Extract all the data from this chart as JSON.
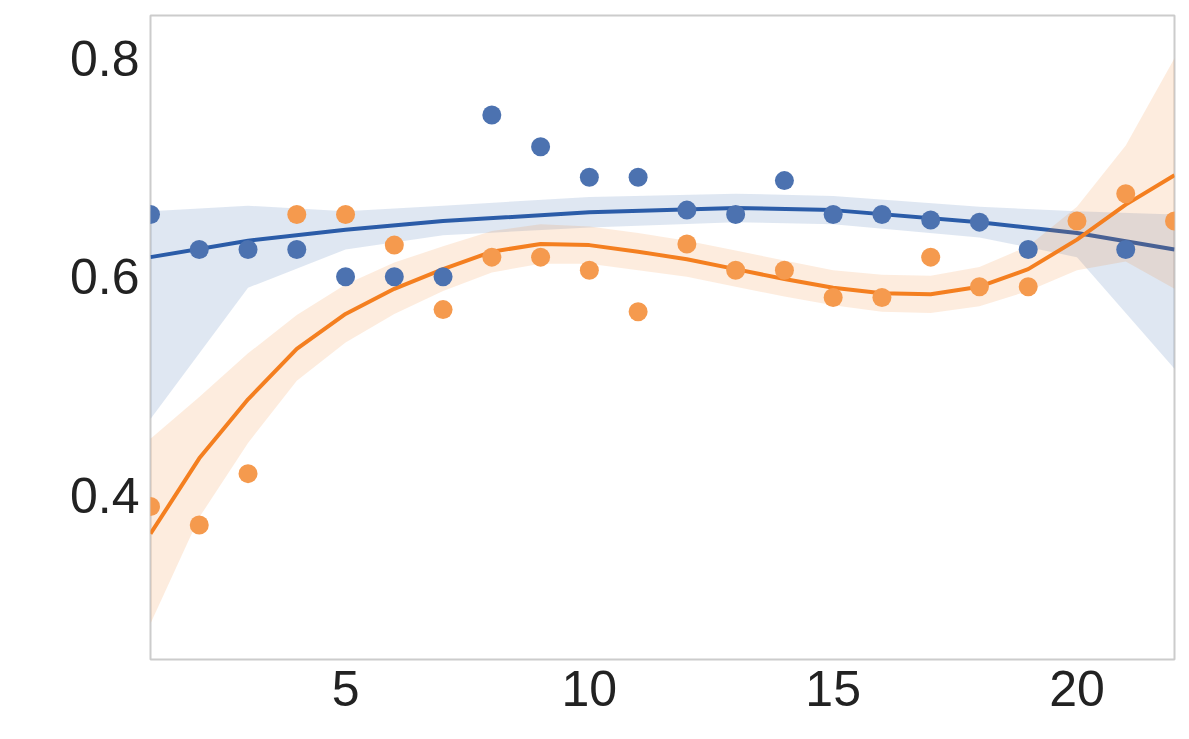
{
  "chart_data": {
    "type": "scatter",
    "x": [
      1,
      2,
      3,
      4,
      5,
      6,
      7,
      8,
      9,
      10,
      11,
      12,
      13,
      14,
      15,
      16,
      17,
      18,
      19,
      20,
      21,
      22
    ],
    "series": [
      {
        "marker": "circle",
        "color": "#4c72b0",
        "values": [
          0.657,
          0.625,
          0.625,
          0.625,
          0.6,
          0.6,
          0.6,
          0.748,
          0.719,
          0.691,
          0.691,
          0.661,
          0.657,
          0.688,
          0.657,
          0.657,
          0.652,
          0.65,
          0.625,
          null,
          0.625,
          null
        ]
      },
      {
        "marker": "circle",
        "color": "#f59a4e",
        "values": [
          0.39,
          0.373,
          0.42,
          0.657,
          0.657,
          0.629,
          0.57,
          0.618,
          0.618,
          0.606,
          0.568,
          0.63,
          0.606,
          0.606,
          0.581,
          0.581,
          0.618,
          0.591,
          0.591,
          0.651,
          0.676,
          0.651
        ]
      },
      {
        "type": "line",
        "marker": "none",
        "color": "#2b5ca8",
        "x": [
          1,
          3,
          5,
          7,
          10,
          13,
          15,
          18,
          20,
          22
        ],
        "values": [
          0.618,
          0.633,
          0.643,
          0.651,
          0.659,
          0.663,
          0.661,
          0.65,
          0.64,
          0.625
        ],
        "lower": [
          0.47,
          0.59,
          0.625,
          0.638,
          0.645,
          0.65,
          0.648,
          0.636,
          0.618,
          0.516
        ],
        "upper": [
          0.66,
          0.665,
          0.66,
          0.665,
          0.673,
          0.676,
          0.674,
          0.664,
          0.66,
          0.657
        ]
      },
      {
        "type": "line",
        "marker": "none",
        "color": "#f47f20",
        "x": [
          1,
          2,
          3,
          4,
          5,
          6,
          7,
          8,
          9,
          10,
          11,
          12,
          13,
          14,
          15,
          16,
          17,
          18,
          19,
          20,
          21,
          22
        ],
        "values": [
          0.365,
          0.434,
          0.488,
          0.534,
          0.566,
          0.589,
          0.607,
          0.623,
          0.63,
          0.629,
          0.623,
          0.616,
          0.607,
          0.598,
          0.59,
          0.585,
          0.584,
          0.591,
          0.607,
          0.634,
          0.666,
          0.693
        ],
        "lower": [
          0.283,
          0.38,
          0.448,
          0.505,
          0.54,
          0.566,
          0.587,
          0.604,
          0.612,
          0.612,
          0.606,
          0.6,
          0.591,
          0.582,
          0.574,
          0.568,
          0.567,
          0.573,
          0.587,
          0.606,
          0.614,
          0.589
        ],
        "upper": [
          0.452,
          0.49,
          0.53,
          0.565,
          0.593,
          0.613,
          0.628,
          0.642,
          0.648,
          0.646,
          0.64,
          0.633,
          0.624,
          0.615,
          0.606,
          0.602,
          0.601,
          0.609,
          0.628,
          0.664,
          0.72,
          0.8
        ]
      }
    ],
    "xlim": [
      1,
      22
    ],
    "ylim": [
      0.25,
      0.839
    ],
    "xticks": [
      5,
      10,
      15,
      20
    ],
    "yticks": [
      0.4,
      0.6,
      0.8
    ],
    "grid": false,
    "line_style": "solid"
  }
}
